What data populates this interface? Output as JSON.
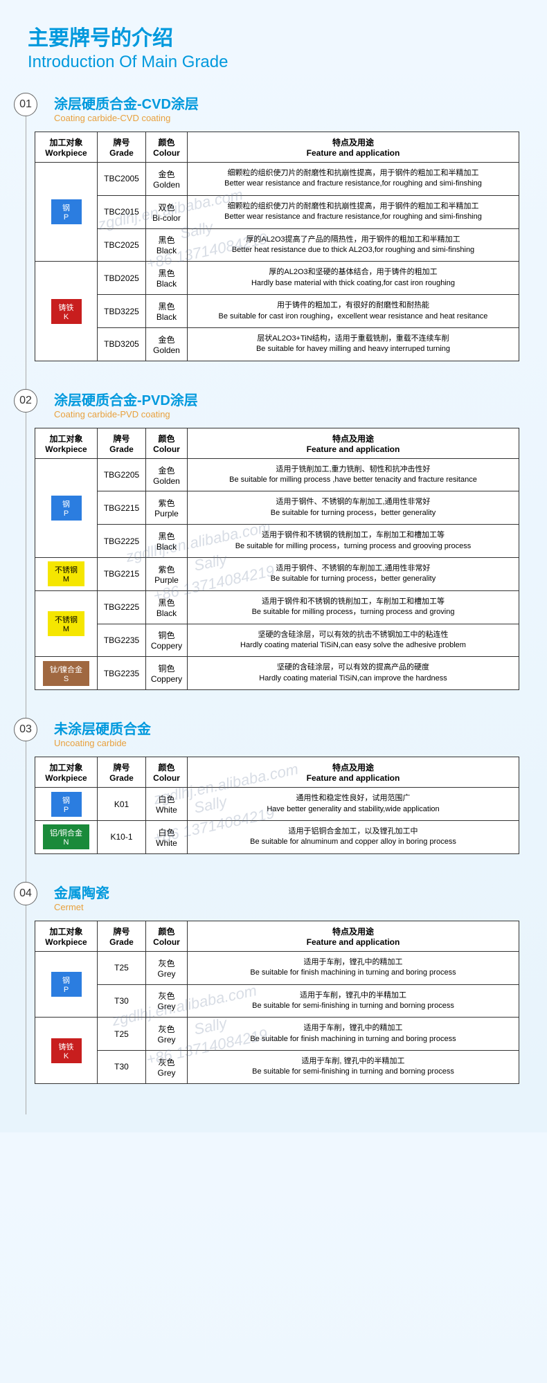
{
  "page_title_cn": "主要牌号的介绍",
  "page_title_en": "Introduction Of Main Grade",
  "headers": {
    "workpiece_cn": "加工对象",
    "workpiece_en": "Workpiece",
    "grade_cn": "牌号",
    "grade_en": "Grade",
    "colour_cn": "颜色",
    "colour_en": "Colour",
    "feature_cn": "特点及用途",
    "feature_en": "Feature and application"
  },
  "workpiece_badges": {
    "steel_p": {
      "label_cn": "钢",
      "label_en": "P",
      "bg": "#2b7de0"
    },
    "cast_k": {
      "label_cn": "铸铁",
      "label_en": "K",
      "bg": "#c81e1e"
    },
    "stainless_m": {
      "label_cn": "不锈钢",
      "label_en": "M",
      "bg": "#f5e600"
    },
    "super_s": {
      "label_cn": "钛/镍合金",
      "label_en": "S",
      "bg": "#a06840"
    },
    "alu_n": {
      "label_cn": "铝/铜合金",
      "label_en": "N",
      "bg": "#1a8a3a"
    }
  },
  "watermarks": [
    "zgdlhj.en.alibaba.com",
    "Sally",
    "+86 13714084219"
  ],
  "sections": [
    {
      "num": "01",
      "title_cn": "涂层硬质合金-CVD涂层",
      "title_en": "Coating carbide-CVD coating",
      "groups": [
        {
          "wp": "steel_p",
          "rows": [
            {
              "grade": "TBC2005",
              "colour_cn": "金色",
              "colour_en": "Golden",
              "feat_cn": "细颗粒的组织使刀片的耐磨性和抗崩性提高，用于钢件的粗加工和半精加工",
              "feat_en": "Better wear resistance and fracture resistance,for roughing and simi-finshing"
            },
            {
              "grade": "TBC2015",
              "colour_cn": "双色",
              "colour_en": "Bi-color",
              "feat_cn": "细颗粒的组织使刀片的耐磨性和抗崩性提高，用于钢件的粗加工和半精加工",
              "feat_en": "Better wear resistance and fracture resistance,for roughing and simi-finshing"
            },
            {
              "grade": "TBC2025",
              "colour_cn": "黑色",
              "colour_en": "Black",
              "feat_cn": "厚的AL2O3提高了产品的隔热性，用于钢件的粗加工和半精加工",
              "feat_en": "Better heat resistance due to thick AL2O3,for roughing and simi-finshing"
            }
          ]
        },
        {
          "wp": "cast_k",
          "rows": [
            {
              "grade": "TBD2025",
              "colour_cn": "黑色",
              "colour_en": "Black",
              "feat_cn": "厚的AL2O3和坚硬的基体结合，用于铸件的粗加工",
              "feat_en": "Hardly base material with thick coating,for cast iron roughing"
            },
            {
              "grade": "TBD3225",
              "colour_cn": "黑色",
              "colour_en": "Black",
              "feat_cn": "用于铸件的粗加工，有很好的耐磨性和耐热能",
              "feat_en": "Be suitable for cast iron roughing，excellent wear resistance and heat resitance"
            },
            {
              "grade": "TBD3205",
              "colour_cn": "金色",
              "colour_en": "Golden",
              "feat_cn": "层状AL2O3+TiN结构，适用于重载铣削，重载不连续车削",
              "feat_en": "Be suitable for havey milling and heavy interruped turning"
            }
          ]
        }
      ]
    },
    {
      "num": "02",
      "title_cn": "涂层硬质合金-PVD涂层",
      "title_en": "Coating carbide-PVD coating",
      "groups": [
        {
          "wp": "steel_p",
          "rows": [
            {
              "grade": "TBG2205",
              "colour_cn": "金色",
              "colour_en": "Golden",
              "feat_cn": "适用于铣削加工,重力铣削、韧性和抗冲击性好",
              "feat_en": "Be suitable for milling process ,have better tenacity and fracture resitance"
            },
            {
              "grade": "TBG2215",
              "colour_cn": "紫色",
              "colour_en": "Purple",
              "feat_cn": "适用于钢件、不锈钢的车削加工,通用性非常好",
              "feat_en": "Be suitable for turning process，better generality"
            },
            {
              "grade": "TBG2225",
              "colour_cn": "黑色",
              "colour_en": "Black",
              "feat_cn": "适用于钢件和不锈钢的铣削加工，车削加工和槽加工等",
              "feat_en": "Be suitable for milling process，turning process and grooving process"
            }
          ]
        },
        {
          "wp": "stainless_m",
          "rows": [
            {
              "grade": "TBG2215",
              "colour_cn": "紫色",
              "colour_en": "Purple",
              "feat_cn": "适用于钢件、不锈钢的车削加工,通用性非常好",
              "feat_en": "Be suitable for turning process，better generality"
            }
          ]
        },
        {
          "wp": "stainless_m",
          "rows": [
            {
              "grade": "TBG2225",
              "colour_cn": "黑色",
              "colour_en": "Black",
              "feat_cn": "适用于钢件和不锈钢的铣削加工，车削加工和槽加工等",
              "feat_en": "Be suitable for milling process，turning process and groving"
            },
            {
              "grade": "TBG2235",
              "colour_cn": "铜色",
              "colour_en": "Coppery",
              "feat_cn": "坚硬的含硅涂层，可以有效的抗击不锈钢加工中的粘连性",
              "feat_en": "Hardly coating material TiSiN,can easy solve the adhesive problem"
            }
          ]
        },
        {
          "wp": "super_s",
          "rows": [
            {
              "grade": "TBG2235",
              "colour_cn": "铜色",
              "colour_en": "Coppery",
              "feat_cn": "坚硬的含硅涂层，可以有效的提高产品的硬度",
              "feat_en": "Hardly coating material TiSiN,can improve the hardness"
            }
          ]
        }
      ]
    },
    {
      "num": "03",
      "title_cn": "未涂层硬质合金",
      "title_en": "Uncoating carbide",
      "groups": [
        {
          "wp": "steel_p",
          "rows": [
            {
              "grade": "K01",
              "colour_cn": "白色",
              "colour_en": "White",
              "feat_cn": "通用性和稳定性良好，试用范围广",
              "feat_en": "Have better generality and stability,wide application"
            }
          ]
        },
        {
          "wp": "alu_n",
          "rows": [
            {
              "grade": "K10-1",
              "colour_cn": "白色",
              "colour_en": "White",
              "feat_cn": "适用于铝铜合金加工，以及镗孔加工中",
              "feat_en": "Be suitable for alnuminum and copper alloy in boring process"
            }
          ]
        }
      ]
    },
    {
      "num": "04",
      "title_cn": "金属陶瓷",
      "title_en": "Cermet",
      "groups": [
        {
          "wp": "steel_p",
          "rows": [
            {
              "grade": "T25",
              "colour_cn": "灰色",
              "colour_en": "Grey",
              "feat_cn": "适用于车削，镗孔中的精加工",
              "feat_en": "Be suitable for finish machining in turning and boring process"
            },
            {
              "grade": "T30",
              "colour_cn": "灰色",
              "colour_en": "Grey",
              "feat_cn": "适用于车削，镗孔中的半精加工",
              "feat_en": "Be suitable for semi-finishing in turning and borning process"
            }
          ]
        },
        {
          "wp": "cast_k",
          "rows": [
            {
              "grade": "T25",
              "colour_cn": "灰色",
              "colour_en": "Grey",
              "feat_cn": "适用于车削，镗孔中的精加工",
              "feat_en": "Be suitable for finish machining in turning and boring process"
            },
            {
              "grade": "T30",
              "colour_cn": "灰色",
              "colour_en": "Grey",
              "feat_cn": "适用于车削, 镗孔中的半精加工",
              "feat_en": "Be suitable for semi-finishing in turning and borning process"
            }
          ]
        }
      ]
    }
  ]
}
